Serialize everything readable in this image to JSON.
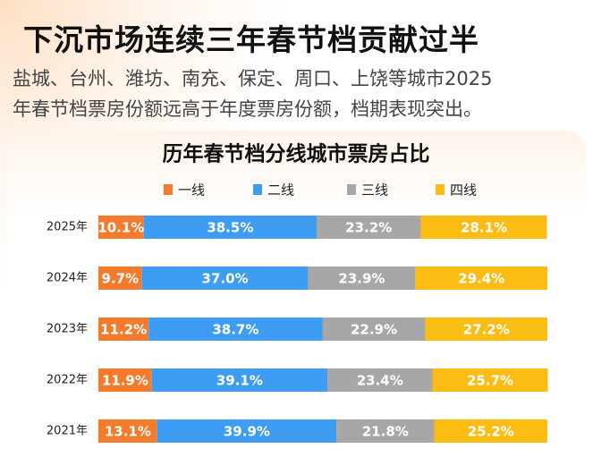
{
  "header": {
    "title": "下沉市场连续三年春节档贡献过半",
    "subtitle": [
      "盐城、台州、潍坊、南充、保定、周口、上饶等城市2025",
      "年春节档票房份额远高于年度票房份额，档期表现突出。"
    ]
  },
  "chart_data": {
    "type": "stacked_bar",
    "orientation": "horizontal",
    "title": "历年春节档分线城市票房占比",
    "categories": [
      "2025年",
      "2024年",
      "2023年",
      "2022年",
      "2021年"
    ],
    "xlim": [
      0,
      100
    ],
    "series": [
      {
        "name": "一线",
        "color": "#f47a2c",
        "values": [
          10.1,
          9.7,
          11.2,
          11.9,
          13.1
        ],
        "value_labels": [
          "10.1%",
          "9.7%",
          "11.2%",
          "11.9%",
          "13.1%"
        ]
      },
      {
        "name": "二线",
        "color": "#3f9cf3",
        "values": [
          38.5,
          37.0,
          38.7,
          39.1,
          39.9
        ],
        "value_labels": [
          "38.5%",
          "37.0%",
          "38.7%",
          "39.1%",
          "39.9%"
        ]
      },
      {
        "name": "三线",
        "color": "#a7a7a7",
        "values": [
          23.2,
          23.9,
          22.9,
          23.4,
          21.8
        ],
        "value_labels": [
          "23.2%",
          "23.9%",
          "22.9%",
          "23.4%",
          "21.8%"
        ]
      },
      {
        "name": "四线",
        "color": "#fbbd14",
        "values": [
          28.1,
          29.4,
          27.2,
          25.7,
          25.2
        ],
        "value_labels": [
          "28.1%",
          "29.4%",
          "27.2%",
          "25.7%",
          "25.2%"
        ]
      }
    ]
  }
}
